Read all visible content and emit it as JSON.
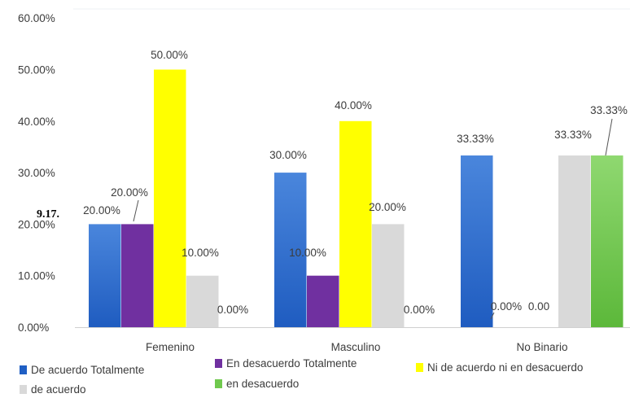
{
  "chart_data": {
    "type": "bar",
    "title": "",
    "xlabel": "",
    "ylabel": "",
    "ylim": [
      0,
      60
    ],
    "yticks": [
      "0.00%",
      "10.00%",
      "20.00%",
      "30.00%",
      "40.00%",
      "50.00%",
      "60.00%"
    ],
    "grid": false,
    "legend_position": "bottom",
    "categories": [
      "Femenino",
      "Masculino",
      "No Binario"
    ],
    "series": [
      {
        "name": "De acuerdo  Totalmente",
        "color": "#2f6fd0",
        "values": [
          20,
          30,
          33.33
        ],
        "labels": [
          "20.00%",
          "30.00%",
          "33.33%"
        ]
      },
      {
        "name": "En desacuerdo  Totalmente",
        "color": "#7030a0",
        "values": [
          20,
          10,
          0
        ],
        "labels": [
          "20.00%",
          "10.00%",
          "0.00%"
        ]
      },
      {
        "name": "Ni de acuerdo ni en desacuerdo",
        "color": "#ffff00",
        "values": [
          50,
          40,
          0
        ],
        "labels": [
          "50.00%",
          "40.00%",
          "0.00"
        ]
      },
      {
        "name": "de acuerdo",
        "color": "#d9d9d9",
        "values": [
          10,
          20,
          33.33
        ],
        "labels": [
          "10.00%",
          "20.00%",
          "33.33%"
        ]
      },
      {
        "name": "en desacuerdo",
        "color": "#70c94e",
        "values": [
          0,
          0,
          33.33
        ],
        "labels": [
          "0.00%",
          "0.00%",
          "33.33%"
        ]
      }
    ],
    "stray_text": "9.17."
  }
}
